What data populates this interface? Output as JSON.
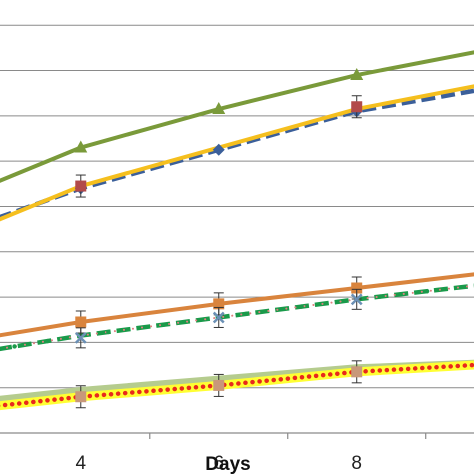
{
  "chart_data": {
    "type": "line",
    "title": "",
    "xlabel": "Days",
    "ylabel": "",
    "xlim": [
      2.8,
      9.7
    ],
    "ylim": [
      0,
      9.6
    ],
    "grid": "horizontal",
    "x_ticks": [
      4,
      6,
      8
    ],
    "x_tick_labels": [
      "4",
      "6",
      "8"
    ],
    "x_tick_marks": [
      5,
      7,
      9
    ],
    "y_gridlines": [
      0,
      1,
      2,
      3,
      4,
      5,
      6,
      7,
      8,
      9
    ],
    "series": [
      {
        "color": "#7a9a3a",
        "line": "solid",
        "marker": "triangle",
        "x": [
          2.8,
          4,
          6,
          8,
          9.7
        ],
        "y": [
          5.55,
          6.3,
          7.15,
          7.9,
          8.4
        ]
      },
      {
        "color": "#3b5f9a",
        "line": "dashed",
        "marker": "diamond",
        "x": [
          2.8,
          4,
          6,
          8,
          9.7
        ],
        "y": [
          4.75,
          5.4,
          6.25,
          7.1,
          7.55
        ]
      },
      {
        "color": "#b24a4a",
        "line": "none",
        "marker": "square",
        "x": [
          4,
          8
        ],
        "y": [
          5.45,
          7.2
        ]
      },
      {
        "color": "#f5bf1e",
        "line": "solid",
        "marker": "none",
        "x": [
          2.8,
          4,
          6,
          8,
          9.7
        ],
        "y": [
          4.7,
          5.45,
          6.3,
          7.15,
          7.65
        ]
      },
      {
        "color": "#d9843d",
        "line": "solid",
        "marker": "square",
        "x": [
          2.8,
          4,
          6,
          8,
          9.7
        ],
        "y": [
          2.15,
          2.45,
          2.85,
          3.2,
          3.5
        ]
      },
      {
        "color": "#1a9a4a",
        "line": "dashed",
        "marker": "none",
        "x": [
          2.8,
          4,
          6,
          8,
          9.7
        ],
        "y": [
          1.85,
          2.15,
          2.55,
          2.95,
          3.25
        ]
      },
      {
        "color": "#e08080",
        "line": "dotted",
        "marker": "none",
        "x": [
          2.8,
          4,
          6,
          8,
          9.7
        ],
        "y": [
          1.85,
          2.15,
          2.55,
          2.95,
          3.25
        ]
      },
      {
        "color": "#6b90b5",
        "line": "none",
        "marker": "x",
        "x": [
          4,
          6,
          8
        ],
        "y": [
          2.1,
          2.55,
          2.95
        ]
      },
      {
        "color": "#b5cc8e",
        "line": "solid",
        "marker": "none",
        "x": [
          2.8,
          4,
          6,
          8,
          9.7
        ],
        "y": [
          0.75,
          0.95,
          1.2,
          1.45,
          1.55
        ]
      },
      {
        "color": "#ffff33",
        "line": "solid",
        "marker": "none",
        "x": [
          2.8,
          4,
          6,
          8,
          9.7
        ],
        "y": [
          0.6,
          0.8,
          1.05,
          1.35,
          1.5
        ]
      },
      {
        "color": "#e8291c",
        "line": "dotted",
        "marker": "none",
        "x": [
          2.8,
          4,
          6,
          8,
          9.7
        ],
        "y": [
          0.6,
          0.8,
          1.05,
          1.35,
          1.5
        ]
      },
      {
        "color": "#c8987a",
        "line": "none",
        "marker": "square",
        "x": [
          4,
          6,
          8
        ],
        "y": [
          0.8,
          1.05,
          1.35
        ]
      }
    ]
  }
}
